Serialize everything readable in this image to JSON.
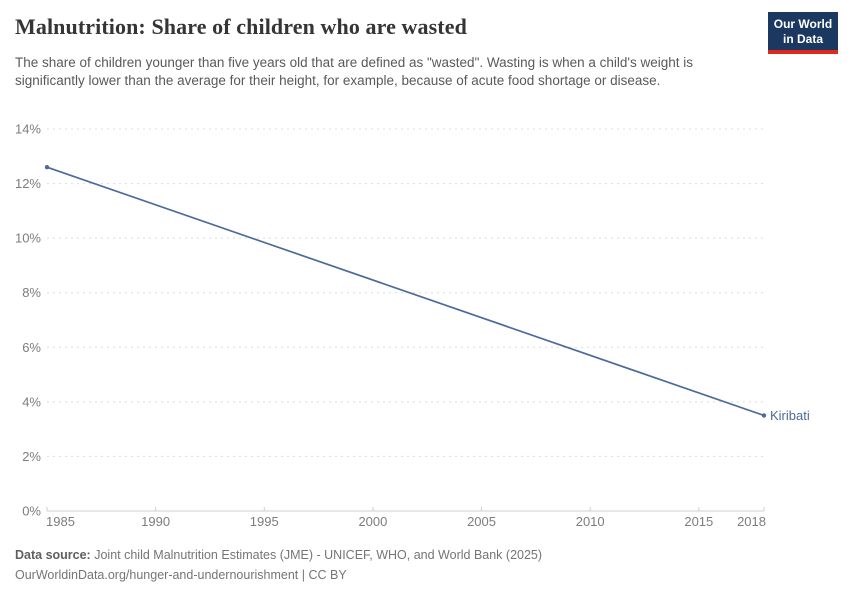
{
  "header": {
    "title": "Malnutrition: Share of children who are wasted",
    "logo": {
      "line1": "Our World",
      "line2": "in Data"
    }
  },
  "subtitle": "The share of children younger than five years old that are defined as \"wasted\". Wasting is when a child's weight is significantly lower than the average for their height, for example, because of acute food shortage or disease.",
  "chart_data": {
    "type": "line",
    "title": "Malnutrition: Share of children who are wasted",
    "xlabel": "",
    "ylabel": "",
    "xlim": [
      1985,
      2018
    ],
    "ylim": [
      0,
      14
    ],
    "x_ticks": [
      1985,
      1990,
      1995,
      2000,
      2005,
      2010,
      2015,
      2018
    ],
    "y_ticks": [
      0,
      2,
      4,
      6,
      8,
      10,
      12,
      14
    ],
    "y_tick_suffix": "%",
    "grid": "horizontal-dashed",
    "legend_position": "end-of-line",
    "series": [
      {
        "name": "Kiribati",
        "color": "#4c6a9c",
        "points": [
          {
            "x": 1985,
            "y": 12.6
          },
          {
            "x": 2018,
            "y": 3.5
          }
        ]
      }
    ]
  },
  "footer": {
    "datasource_label": "Data source:",
    "datasource_text": "Joint child Malnutrition Estimates (JME) - UNICEF, WHO, and World Bank (2025)",
    "attribution": "OurWorldinData.org/hunger-and-undernourishment | CC BY"
  },
  "colors": {
    "line": "#4c6a9c",
    "grid": "#dcdcdc",
    "axis": "#cfcfcf",
    "tick_text": "#7d7d7d",
    "logo_bg": "#1a3860",
    "logo_stripe": "#dc2a1e"
  }
}
